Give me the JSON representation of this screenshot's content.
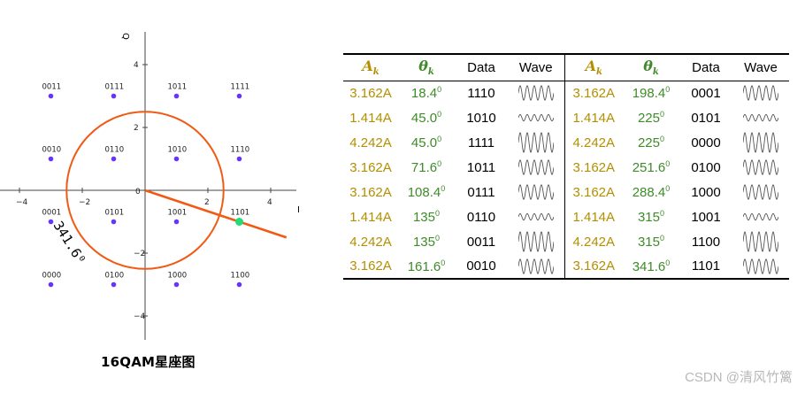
{
  "constellation": {
    "x_ticks": [
      "−4",
      "−2",
      "0",
      "2",
      "4"
    ],
    "y_ticks": [
      "4",
      "2",
      "−2",
      "−4"
    ],
    "y_axis_label": "Q",
    "x_axis_label": "I",
    "angle_label": "341.6⁰",
    "points": [
      {
        "label": "0011",
        "i": -3,
        "q": 3
      },
      {
        "label": "0111",
        "i": -1,
        "q": 3
      },
      {
        "label": "1011",
        "i": 1,
        "q": 3
      },
      {
        "label": "1111",
        "i": 3,
        "q": 3
      },
      {
        "label": "0010",
        "i": -3,
        "q": 1
      },
      {
        "label": "0110",
        "i": -1,
        "q": 1
      },
      {
        "label": "1010",
        "i": 1,
        "q": 1
      },
      {
        "label": "1110",
        "i": 3,
        "q": 1
      },
      {
        "label": "0001",
        "i": -3,
        "q": -1
      },
      {
        "label": "0101",
        "i": -1,
        "q": -1
      },
      {
        "label": "1001",
        "i": 1,
        "q": -1
      },
      {
        "label": "1101",
        "i": 3,
        "q": -1
      },
      {
        "label": "0000",
        "i": -3,
        "q": -3
      },
      {
        "label": "0100",
        "i": -1,
        "q": -3
      },
      {
        "label": "1000",
        "i": 1,
        "q": -3
      },
      {
        "label": "1100",
        "i": 3,
        "q": -3
      }
    ],
    "circle_radius": 2.5,
    "highlight_point": {
      "i": 3,
      "q": -1
    },
    "colors": {
      "point": "#6633ff",
      "circle": "#f05a14",
      "highlight": "#22dd77",
      "axis": "#444444"
    }
  },
  "caption": "16QAM星座图",
  "table": {
    "headers": {
      "amp_symbol": "A",
      "amp_sub": "k",
      "angle_symbol": "θ",
      "angle_sub": "k",
      "data": "Data",
      "wave": "Wave"
    },
    "left": [
      {
        "amp": "3.162A",
        "angle": "18.4",
        "data": "1110",
        "wave_amp": 3.162
      },
      {
        "amp": "1.414A",
        "angle": "45.0",
        "data": "1010",
        "wave_amp": 1.414
      },
      {
        "amp": "4.242A",
        "angle": "45.0",
        "data": "1111",
        "wave_amp": 4.242
      },
      {
        "amp": "3.162A",
        "angle": "71.6",
        "data": "1011",
        "wave_amp": 3.162
      },
      {
        "amp": "3.162A",
        "angle": "108.4",
        "data": "0111",
        "wave_amp": 3.162
      },
      {
        "amp": "1.414A",
        "angle": "135",
        "data": "0110",
        "wave_amp": 1.414
      },
      {
        "amp": "4.242A",
        "angle": "135",
        "data": "0011",
        "wave_amp": 4.242
      },
      {
        "amp": "3.162A",
        "angle": "161.6",
        "data": "0010",
        "wave_amp": 3.162
      }
    ],
    "right": [
      {
        "amp": "3.162A",
        "angle": "198.4",
        "data": "0001",
        "wave_amp": 3.162
      },
      {
        "amp": "1.414A",
        "angle": "225",
        "data": "0101",
        "wave_amp": 1.414
      },
      {
        "amp": "4.242A",
        "angle": "225",
        "data": "0000",
        "wave_amp": 4.242
      },
      {
        "amp": "3.162A",
        "angle": "251.6",
        "data": "0100",
        "wave_amp": 3.162
      },
      {
        "amp": "3.162A",
        "angle": "288.4",
        "data": "1000",
        "wave_amp": 3.162
      },
      {
        "amp": "1.414A",
        "angle": "315",
        "data": "1001",
        "wave_amp": 1.414
      },
      {
        "amp": "4.242A",
        "angle": "315",
        "data": "1100",
        "wave_amp": 4.242
      },
      {
        "amp": "3.162A",
        "angle": "341.6",
        "data": "1101",
        "wave_amp": 3.162
      }
    ],
    "degree_mark": "0",
    "amp_color": "#b38f00",
    "angle_color": "#3f8a2a"
  },
  "watermark": "CSDN @清风竹篱"
}
